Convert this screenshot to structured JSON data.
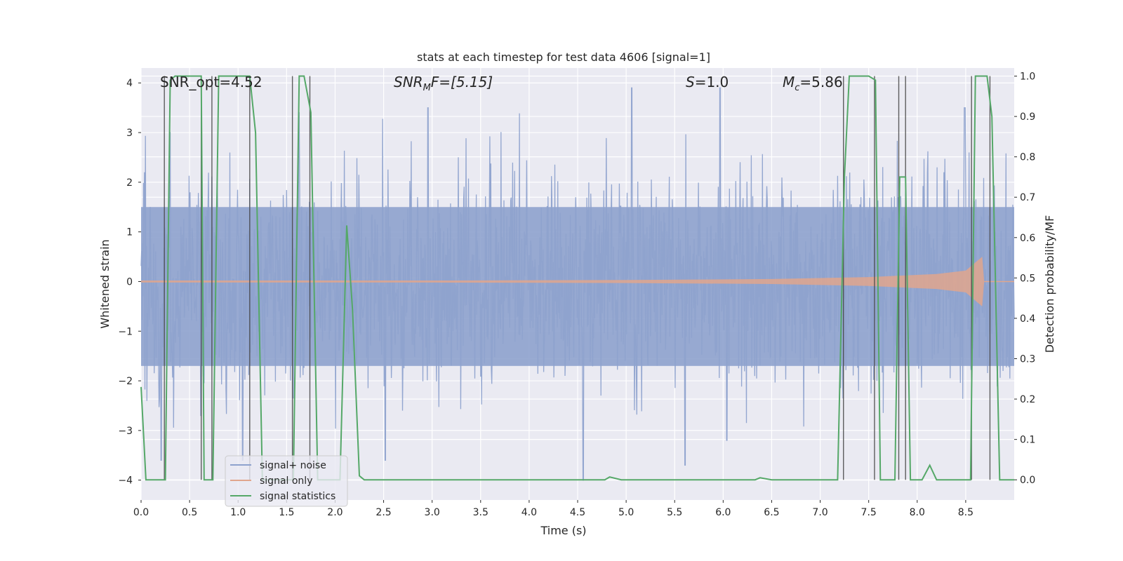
{
  "chart_data": {
    "type": "line",
    "title": "stats at each timestep for test data 4606 [signal=1]",
    "xlabel": "Time (s)",
    "ylabel": "Whitened strain",
    "y2label": "Detection probability/MF",
    "xlim": [
      0.0,
      9.0
    ],
    "ylim": [
      -4.4,
      4.3
    ],
    "y2lim": [
      -0.05,
      1.02
    ],
    "xticks": [
      "0.0",
      "0.5",
      "1.0",
      "1.5",
      "2.0",
      "2.5",
      "3.0",
      "3.5",
      "4.0",
      "4.5",
      "5.0",
      "5.5",
      "6.0",
      "6.5",
      "7.0",
      "7.5",
      "8.0",
      "8.5"
    ],
    "xtick_values": [
      0.0,
      0.5,
      1.0,
      1.5,
      2.0,
      2.5,
      3.0,
      3.5,
      4.0,
      4.5,
      5.0,
      5.5,
      6.0,
      6.5,
      7.0,
      7.5,
      8.0,
      8.5
    ],
    "yticks": [
      "4",
      "3",
      "2",
      "1",
      "0",
      "−1",
      "−2",
      "−3",
      "−4"
    ],
    "ytick_values": [
      4,
      3,
      2,
      1,
      0,
      -1,
      -2,
      -3,
      -4
    ],
    "y2ticks": [
      "1.0",
      "0.9",
      "0.8",
      "0.7",
      "0.6",
      "0.5",
      "0.4",
      "0.3",
      "0.2",
      "0.1",
      "0.0"
    ],
    "y2tick_values": [
      1.0,
      0.9,
      0.8,
      0.7,
      0.6,
      0.5,
      0.4,
      0.3,
      0.2,
      0.1,
      0.0
    ],
    "annotations": {
      "snr_opt": "SNR_opt=4.52",
      "snr_mf_main": "SNR",
      "snr_mf_sub": "M",
      "snr_mf_rest": "F=[5.15]",
      "s_main": "S",
      "s_rest": "=1.0",
      "mc_main": "M",
      "mc_sub": "c",
      "mc_rest": "=5.86"
    },
    "legend": {
      "location": "lower-left",
      "entries": [
        {
          "label": "signal+ noise",
          "color": "#8ea2cd"
        },
        {
          "label": "signal only",
          "color": "#e0a68d"
        },
        {
          "label": "signal statistics",
          "color": "#55a868"
        }
      ]
    },
    "series": [
      {
        "name": "signal+ noise",
        "color": "#8ea2cd",
        "band_typical": [
          -1.7,
          1.5
        ],
        "spike_range": [
          -4.0,
          3.9
        ],
        "peak_samples": [
          {
            "t": 0.21,
            "v": -3.6
          },
          {
            "t": 0.3,
            "v": 3.0
          },
          {
            "t": 0.62,
            "v": -2.7
          },
          {
            "t": 1.05,
            "v": -3.6
          },
          {
            "t": 1.63,
            "v": 3.4
          },
          {
            "t": 2.96,
            "v": 3.5
          },
          {
            "t": 2.52,
            "v": -3.6
          },
          {
            "t": 4.56,
            "v": -4.0
          },
          {
            "t": 5.06,
            "v": 3.9
          },
          {
            "t": 5.97,
            "v": 3.9
          },
          {
            "t": 6.04,
            "v": -3.2
          },
          {
            "t": 5.61,
            "v": -3.7
          },
          {
            "t": 8.49,
            "v": 3.5
          }
        ]
      },
      {
        "name": "signal only",
        "color": "#e0a68d",
        "envelope": [
          {
            "t": 0.0,
            "a": 0.02
          },
          {
            "t": 3.0,
            "a": 0.02
          },
          {
            "t": 5.0,
            "a": 0.03
          },
          {
            "t": 6.5,
            "a": 0.05
          },
          {
            "t": 7.5,
            "a": 0.09
          },
          {
            "t": 8.2,
            "a": 0.15
          },
          {
            "t": 8.5,
            "a": 0.22
          },
          {
            "t": 8.67,
            "a": 0.5
          },
          {
            "t": 8.69,
            "a": 0.0
          }
        ]
      },
      {
        "name": "signal statistics",
        "color": "#55a868",
        "x": [
          0.0,
          0.05,
          0.25,
          0.3,
          0.35,
          0.62,
          0.65,
          0.74,
          0.8,
          1.12,
          1.18,
          1.25,
          1.57,
          1.63,
          1.68,
          1.75,
          1.82,
          1.98,
          2.05,
          2.12,
          2.18,
          2.25,
          2.3,
          4.78,
          4.83,
          4.95,
          6.33,
          6.38,
          6.5,
          7.18,
          7.25,
          7.3,
          7.5,
          7.57,
          7.62,
          7.77,
          7.82,
          7.88,
          7.93,
          8.05,
          8.13,
          8.2,
          8.55,
          8.6,
          8.72,
          8.77,
          8.85,
          9.0
        ],
        "values": [
          0.23,
          0.0,
          0.0,
          0.99,
          1.0,
          1.0,
          0.0,
          0.0,
          1.0,
          1.0,
          0.86,
          0.0,
          0.0,
          1.0,
          1.0,
          0.91,
          0.0,
          0.0,
          0.0,
          0.63,
          0.42,
          0.01,
          0.0,
          0.0,
          0.007,
          0.0,
          0.0,
          0.005,
          0.0,
          0.0,
          0.75,
          1.0,
          1.0,
          0.99,
          0.0,
          0.0,
          0.75,
          0.75,
          0.0,
          0.0,
          0.036,
          0.0,
          0.0,
          1.0,
          1.0,
          0.9,
          0.0,
          0.0
        ]
      }
    ],
    "vertical_markers": [
      0.24,
      0.62,
      0.73,
      1.12,
      1.56,
      1.74,
      7.24,
      7.56,
      7.81,
      7.88,
      8.56,
      8.75
    ]
  }
}
